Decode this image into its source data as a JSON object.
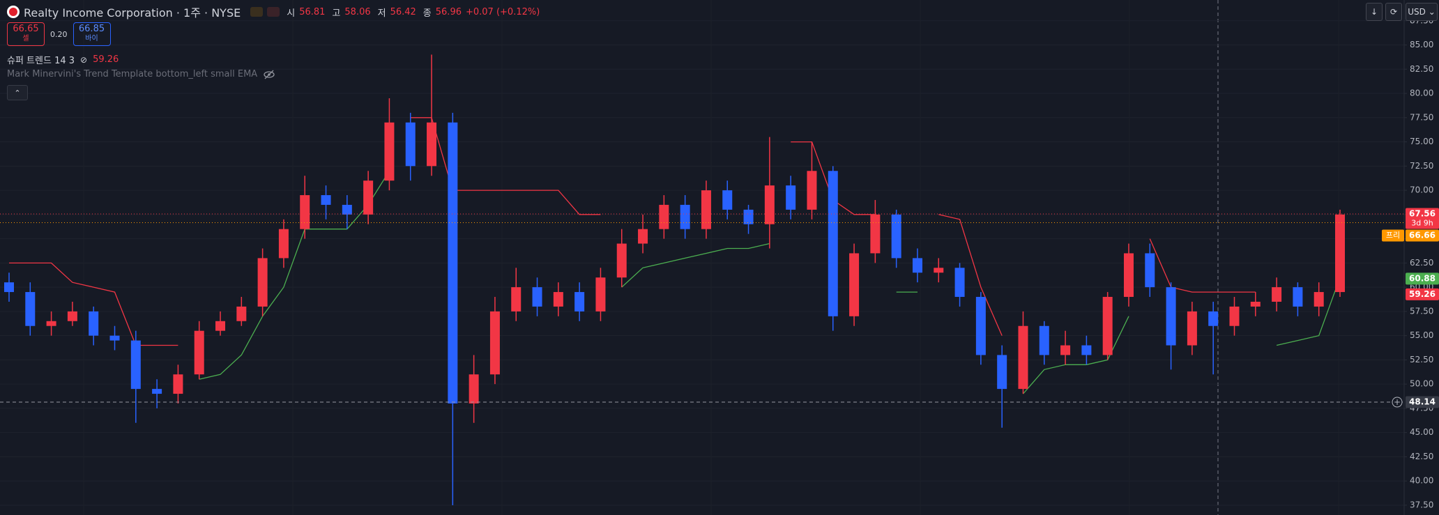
{
  "header": {
    "symbol": "Realty Income Corporation · 1주 · NYSE",
    "ohlc": [
      {
        "key": "시",
        "value": "56.81"
      },
      {
        "key": "고",
        "value": "58.06"
      },
      {
        "key": "저",
        "value": "56.42"
      },
      {
        "key": "종",
        "value": "56.96"
      }
    ],
    "change": "+0.07 (+0.12%)",
    "sell": {
      "price": "66.65",
      "label": "셀"
    },
    "spread": "0.20",
    "buy": {
      "price": "66.85",
      "label": "바이"
    }
  },
  "indicators": [
    {
      "name": "슈퍼 트렌드 14 3",
      "value": "59.26"
    },
    {
      "name": "Mark Minervini's Trend Template bottom_left small EMA"
    }
  ],
  "toolbar": {
    "currency": "USD"
  },
  "chart_data": {
    "type": "candlestick",
    "up_color": "#f23645",
    "down_color": "#2962ff",
    "open": [
      60.5,
      59.5,
      56,
      56.5,
      57.5,
      55,
      54.5,
      49.5,
      49,
      51,
      55.5,
      56.5,
      58,
      63,
      66,
      69.5,
      68.5,
      67.5,
      71,
      77,
      72.5,
      77,
      48,
      51,
      57.5,
      60,
      58,
      59.5,
      57.5,
      61,
      64.5,
      66,
      68.5,
      66,
      70,
      68,
      66.5,
      70.5,
      68,
      72,
      57,
      63.5,
      67.5,
      63,
      61.5,
      62,
      59,
      53,
      49.5,
      56,
      53,
      54,
      53,
      59,
      63.5,
      60,
      54,
      57.5,
      56,
      58,
      58.5,
      60,
      58,
      59.5
    ],
    "high": [
      61.5,
      60.5,
      57.5,
      58.5,
      58,
      56,
      55.5,
      50.5,
      52,
      56.5,
      57.5,
      59,
      64,
      67,
      71.5,
      70.5,
      69.5,
      72,
      79.5,
      78,
      84,
      78,
      53,
      59,
      62,
      61,
      60.5,
      60.5,
      62,
      66,
      67.5,
      69.5,
      69.5,
      71,
      71,
      68.5,
      75.5,
      71.5,
      75,
      72.5,
      64.5,
      69,
      68,
      64,
      63,
      62.5,
      59.5,
      54,
      57.5,
      56.5,
      55.5,
      55,
      59.5,
      64.5,
      64.5,
      60.5,
      58.5,
      58.5,
      59,
      59.5,
      61,
      60.5,
      60.5,
      68
    ],
    "low": [
      58.5,
      55,
      55,
      56,
      54,
      53.5,
      46,
      47.5,
      48,
      50.5,
      55,
      56,
      57,
      62,
      65,
      67,
      66,
      66.5,
      70,
      71,
      71.5,
      37.5,
      46,
      50,
      56.5,
      57,
      57,
      56.5,
      56.5,
      60,
      63.5,
      65,
      65,
      65,
      67,
      65.5,
      64,
      67,
      67,
      55.5,
      56,
      62.5,
      62,
      60.5,
      60.5,
      58,
      52,
      45.5,
      49,
      52,
      52,
      52,
      52.5,
      58,
      59,
      51.5,
      53,
      51,
      55,
      57,
      57.5,
      57,
      57,
      59
    ],
    "close": [
      59.5,
      56,
      56.5,
      57.5,
      55,
      54.5,
      49.5,
      49,
      51,
      55.5,
      56.5,
      58,
      63,
      66,
      69.5,
      68.5,
      67.5,
      71,
      77,
      72.5,
      77,
      48,
      51,
      57.5,
      60,
      58,
      59.5,
      57.5,
      61,
      64.5,
      66,
      68.5,
      66,
      70,
      68,
      66.5,
      70.5,
      68,
      72,
      57,
      63.5,
      67.5,
      63,
      61.5,
      62,
      59,
      53,
      49.5,
      56,
      53,
      54,
      53,
      59,
      63.5,
      60,
      54,
      57.5,
      56,
      58,
      58.5,
      60,
      58,
      59.5,
      67.5
    ],
    "supertrend_up": [
      null,
      null,
      null,
      null,
      null,
      null,
      null,
      null,
      null,
      50.5,
      51,
      53,
      57,
      60,
      66,
      66,
      66,
      68.5,
      72,
      null,
      null,
      null,
      null,
      null,
      null,
      null,
      null,
      null,
      null,
      60,
      62,
      62.5,
      63,
      63.5,
      64,
      64,
      64.5,
      null,
      null,
      null,
      null,
      null,
      59.5,
      59.5,
      null,
      null,
      null,
      null,
      49,
      51.5,
      52,
      52,
      52.5,
      57,
      null,
      null,
      null,
      null,
      null,
      null,
      54,
      54.5,
      55,
      61
    ],
    "supertrend_down": [
      62.5,
      62.5,
      62.5,
      60.5,
      60,
      59.5,
      54,
      54,
      54,
      null,
      null,
      null,
      null,
      null,
      null,
      null,
      null,
      null,
      null,
      77.5,
      77.5,
      70,
      70,
      70,
      70,
      70,
      70,
      67.5,
      67.5,
      null,
      null,
      null,
      null,
      null,
      null,
      null,
      null,
      75,
      75,
      69,
      67.5,
      67.5,
      null,
      null,
      67.5,
      67,
      60,
      55,
      null,
      null,
      null,
      null,
      null,
      null,
      65,
      60,
      59.5,
      59.5,
      59.5,
      59.5,
      null,
      null,
      null,
      null
    ],
    "up_line_color": "#4caf50",
    "down_line_color": "#f23645",
    "ylim": [
      36.49,
      89.64
    ],
    "yticks": [
      {
        "value": 37.5,
        "label": "37.50"
      },
      {
        "value": 40,
        "label": "40.00"
      },
      {
        "value": 42.5,
        "label": "42.50"
      },
      {
        "value": 45,
        "label": "45.00"
      },
      {
        "value": 47.5,
        "label": "47.50"
      },
      {
        "value": 50,
        "label": "50.00"
      },
      {
        "value": 52.5,
        "label": "52.50"
      },
      {
        "value": 55,
        "label": "55.00"
      },
      {
        "value": 57.5,
        "label": "57.50"
      },
      {
        "value": 60,
        "label": "60.00"
      },
      {
        "value": 62.5,
        "label": "62.50"
      },
      {
        "value": 65,
        "label": "65.00"
      },
      {
        "value": 67.5,
        "label": "67.50"
      },
      {
        "value": 70,
        "label": "70.00"
      },
      {
        "value": 72.5,
        "label": "72.50"
      },
      {
        "value": 75,
        "label": "75.00"
      },
      {
        "value": 77.5,
        "label": "77.50"
      },
      {
        "value": 80,
        "label": "80.00"
      },
      {
        "value": 82.5,
        "label": "82.50"
      },
      {
        "value": 85,
        "label": "85.00"
      },
      {
        "value": 87.5,
        "label": "87.50"
      }
    ],
    "grid": true,
    "price_labels": [
      {
        "value": 67.56,
        "label": "67.56",
        "sub": "3d 9h",
        "color": "#f23645"
      },
      {
        "value": 66.66,
        "label": "66.66",
        "tag": "프리",
        "color": "#ff9800"
      },
      {
        "value": 60.88,
        "label": "60.88",
        "color": "#4caf50"
      },
      {
        "value": 59.26,
        "label": "59.26",
        "color": "#f23645"
      }
    ],
    "crosshair": {
      "value": 48.14,
      "label": "48.14"
    }
  }
}
